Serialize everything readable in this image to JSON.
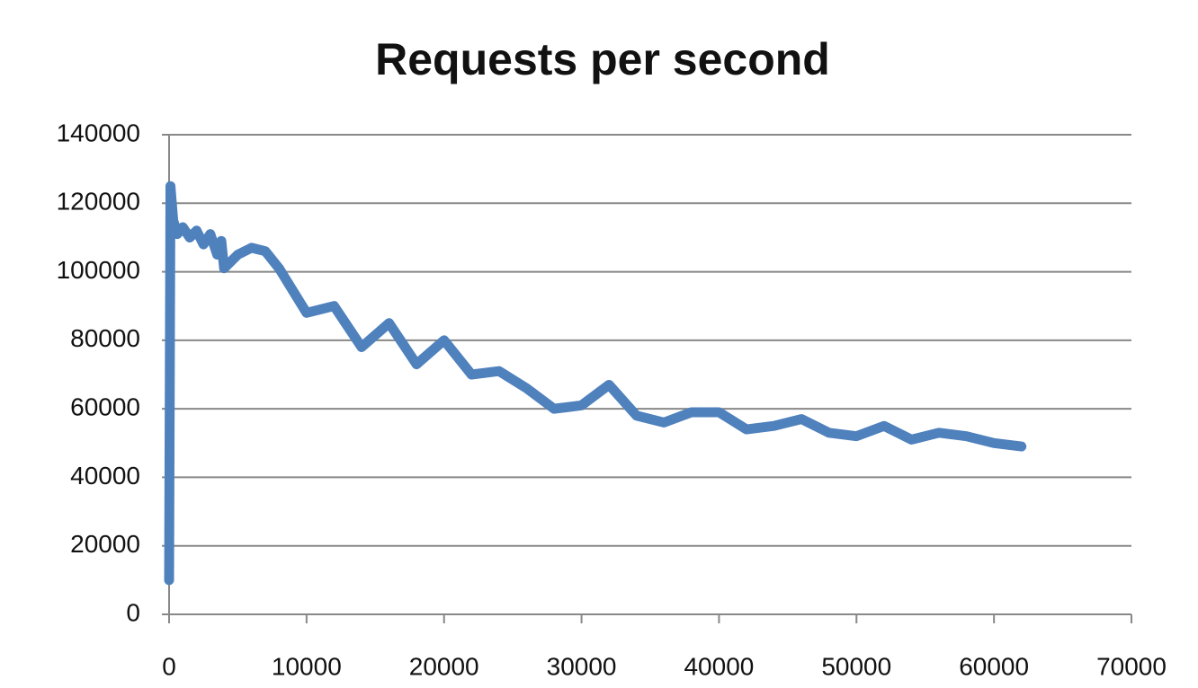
{
  "chart_data": {
    "type": "line",
    "title": "Requests per second",
    "x": [
      0,
      100,
      300,
      600,
      1000,
      1500,
      2000,
      2500,
      3000,
      3500,
      3800,
      4000,
      5000,
      6000,
      7000,
      8000,
      10000,
      12000,
      14000,
      16000,
      18000,
      20000,
      22000,
      24000,
      26000,
      28000,
      30000,
      32000,
      34000,
      36000,
      38000,
      40000,
      42000,
      44000,
      46000,
      48000,
      50000,
      52000,
      54000,
      56000,
      58000,
      60000,
      62000
    ],
    "series": [
      {
        "color": "#4f81bd",
        "values": [
          10000,
          125000,
          115000,
          111000,
          113000,
          110000,
          112000,
          108000,
          111000,
          105000,
          109000,
          101000,
          105000,
          107000,
          106000,
          101000,
          88000,
          90000,
          78000,
          85000,
          73000,
          80000,
          70000,
          71000,
          66000,
          60000,
          61000,
          67000,
          58000,
          56000,
          59000,
          59000,
          54000,
          55000,
          57000,
          53000,
          52000,
          55000,
          51000,
          53000,
          52000,
          50000,
          49000
        ]
      }
    ],
    "xlim": [
      0,
      70000
    ],
    "xticks": [
      0,
      10000,
      20000,
      30000,
      40000,
      50000,
      60000,
      70000
    ],
    "ylim": [
      0,
      140000
    ],
    "yticks": [
      0,
      20000,
      40000,
      60000,
      80000,
      100000,
      120000,
      140000
    ],
    "grid": true
  }
}
